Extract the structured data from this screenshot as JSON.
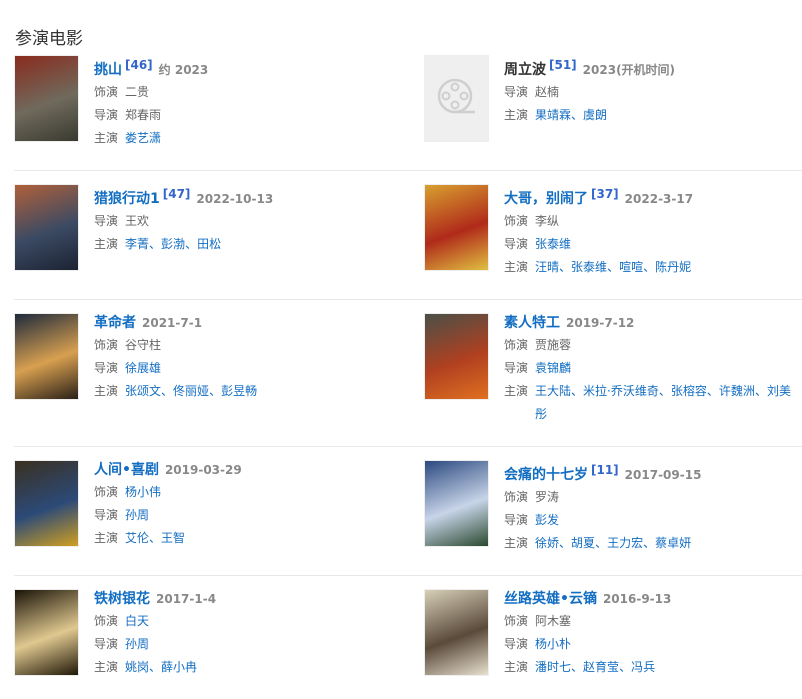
{
  "section_title": "参演电影",
  "films": [
    {
      "title": "挑山",
      "title_link": true,
      "ref": "[46]",
      "date": "约 2023",
      "poster": [
        "#8a2b1e",
        "#6f6a5c",
        "#3a3a30"
      ],
      "rows": [
        {
          "label": "饰演",
          "values": [
            {
              "text": "二贵",
              "link": false
            }
          ]
        },
        {
          "label": "导演",
          "values": [
            {
              "text": "郑春雨",
              "link": false
            }
          ]
        },
        {
          "label": "主演",
          "values": [
            {
              "text": "娄艺潇",
              "link": true
            }
          ]
        }
      ]
    },
    {
      "title": "周立波",
      "title_link": false,
      "ref": "[51]",
      "date": "2023(开机时间)",
      "poster": null,
      "poster_icon": "film-reel-icon",
      "rows": [
        {
          "label": "导演",
          "values": [
            {
              "text": "赵楠",
              "link": false
            }
          ]
        },
        {
          "label": "主演",
          "values": [
            {
              "text": "果靖霖",
              "link": true
            },
            {
              "text": "虞朗",
              "link": true
            }
          ]
        }
      ]
    },
    {
      "title": "猎狼行动1",
      "title_link": true,
      "ref": "[47]",
      "date": "2022-10-13",
      "poster": [
        "#b0603a",
        "#3b4a63",
        "#1c2333"
      ],
      "rows": [
        {
          "label": "导演",
          "values": [
            {
              "text": "王欢",
              "link": false
            }
          ]
        },
        {
          "label": "主演",
          "values": [
            {
              "text": "李菁",
              "link": true
            },
            {
              "text": "彭渤",
              "link": true
            },
            {
              "text": "田松",
              "link": true
            }
          ]
        }
      ]
    },
    {
      "title": "大哥，别闹了",
      "title_link": true,
      "ref": "[37]",
      "date": "2022-3-17",
      "poster": [
        "#d8a030",
        "#b02a1a",
        "#e0c040"
      ],
      "rows": [
        {
          "label": "饰演",
          "values": [
            {
              "text": "李纵",
              "link": false
            }
          ]
        },
        {
          "label": "导演",
          "values": [
            {
              "text": "张泰维",
              "link": true
            }
          ]
        },
        {
          "label": "主演",
          "values": [
            {
              "text": "汪晴",
              "link": true
            },
            {
              "text": "张泰维",
              "link": true
            },
            {
              "text": "喧喧",
              "link": true
            },
            {
              "text": "陈丹妮",
              "link": true
            }
          ]
        }
      ]
    },
    {
      "title": "革命者",
      "title_link": true,
      "ref": "",
      "date": "2021-7-1",
      "poster": [
        "#1e2a3c",
        "#d8a050",
        "#2a2018"
      ],
      "rows": [
        {
          "label": "饰演",
          "values": [
            {
              "text": "谷守柱",
              "link": false
            }
          ]
        },
        {
          "label": "导演",
          "values": [
            {
              "text": "徐展雄",
              "link": true
            }
          ]
        },
        {
          "label": "主演",
          "values": [
            {
              "text": "张颂文",
              "link": true
            },
            {
              "text": "佟丽娅",
              "link": true
            },
            {
              "text": "彭昱畅",
              "link": true
            }
          ]
        }
      ]
    },
    {
      "title": "素人特工",
      "title_link": true,
      "ref": "",
      "date": "2019-7-12",
      "poster": [
        "#4a5048",
        "#b04020",
        "#e07020"
      ],
      "rows": [
        {
          "label": "饰演",
          "values": [
            {
              "text": "贾施蓉",
              "link": false
            }
          ]
        },
        {
          "label": "导演",
          "values": [
            {
              "text": "袁锦麟",
              "link": true
            }
          ]
        },
        {
          "label": "主演",
          "values": [
            {
              "text": "王大陆",
              "link": true
            },
            {
              "text": "米拉·乔沃维奇",
              "link": true
            },
            {
              "text": "张榕容",
              "link": true
            },
            {
              "text": "许魏洲",
              "link": true
            },
            {
              "text": "刘美彤",
              "link": true
            }
          ]
        }
      ]
    },
    {
      "title": "人间•喜剧",
      "title_link": true,
      "ref": "",
      "date": "2019-03-29",
      "poster": [
        "#3a3020",
        "#2c4a78",
        "#d0a020"
      ],
      "rows": [
        {
          "label": "饰演",
          "values": [
            {
              "text": "杨小伟",
              "link": true
            }
          ]
        },
        {
          "label": "导演",
          "values": [
            {
              "text": "孙周",
              "link": true
            }
          ]
        },
        {
          "label": "主演",
          "values": [
            {
              "text": "艾伦",
              "link": true
            },
            {
              "text": "王智",
              "link": true
            }
          ]
        }
      ]
    },
    {
      "title": "会痛的十七岁",
      "title_link": true,
      "ref": "[11]",
      "date": "2017-09-15",
      "poster": [
        "#2c4a80",
        "#c8d4e8",
        "#2a4a30"
      ],
      "rows": [
        {
          "label": "饰演",
          "values": [
            {
              "text": "罗涛",
              "link": false
            }
          ]
        },
        {
          "label": "导演",
          "values": [
            {
              "text": "彭发",
              "link": true
            }
          ]
        },
        {
          "label": "主演",
          "values": [
            {
              "text": "徐娇",
              "link": true
            },
            {
              "text": "胡夏",
              "link": true
            },
            {
              "text": "王力宏",
              "link": true
            },
            {
              "text": "蔡卓妍",
              "link": true
            }
          ]
        }
      ]
    },
    {
      "title": "铁树银花",
      "title_link": true,
      "ref": "",
      "date": "2017-1-4",
      "poster": [
        "#1a1408",
        "#e0c890",
        "#201808"
      ],
      "rows": [
        {
          "label": "饰演",
          "values": [
            {
              "text": "白天",
              "link": true
            }
          ]
        },
        {
          "label": "导演",
          "values": [
            {
              "text": "孙周",
              "link": true
            }
          ]
        },
        {
          "label": "主演",
          "values": [
            {
              "text": "姚岗",
              "link": true
            },
            {
              "text": "薛小冉",
              "link": true
            }
          ]
        }
      ]
    },
    {
      "title": "丝路英雄•云镝",
      "title_link": true,
      "ref": "",
      "date": "2016-9-13",
      "poster": [
        "#d8d0b8",
        "#5a4a3a",
        "#e8e0d0"
      ],
      "rows": [
        {
          "label": "饰演",
          "values": [
            {
              "text": "阿木塞",
              "link": false
            }
          ]
        },
        {
          "label": "导演",
          "values": [
            {
              "text": "杨小朴",
              "link": true
            }
          ]
        },
        {
          "label": "主演",
          "values": [
            {
              "text": "潘时七",
              "link": true
            },
            {
              "text": "赵育莹",
              "link": true
            },
            {
              "text": "冯兵",
              "link": true
            }
          ]
        }
      ]
    }
  ]
}
